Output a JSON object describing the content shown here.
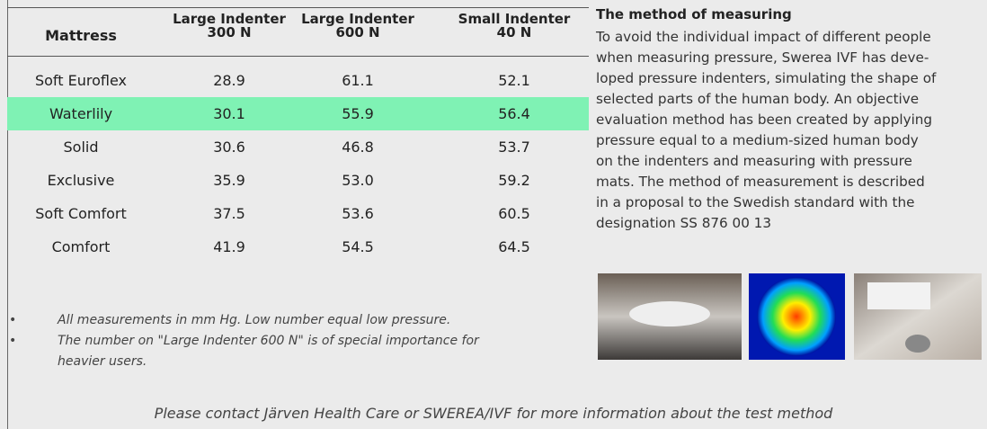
{
  "table": {
    "header": [
      [
        "Mattress"
      ],
      [
        "Large Indenter",
        "300 N"
      ],
      [
        "Large Indenter",
        "600 N"
      ],
      [
        "Small Indenter",
        "40 N"
      ]
    ],
    "rows": [
      [
        "Soft Euroflex",
        "28.9",
        "61.1",
        "52.1"
      ],
      [
        "Waterlily",
        "30.1",
        "55.9",
        "56.4"
      ],
      [
        "Solid",
        "30.6",
        "46.8",
        "53.7"
      ],
      [
        "Exclusive",
        "35.9",
        "53.0",
        "59.2"
      ],
      [
        "Soft Comfort",
        "37.5",
        "53.6",
        "60.5"
      ],
      [
        "Comfort",
        "41.9",
        "54.5",
        "64.5"
      ]
    ]
  },
  "notes": [
    "All measurements in mm Hg. Low number equal low pressure.",
    [
      "The number on \"Large Indenter 600 N\" is of special importance for",
      "heavier users."
    ]
  ],
  "method": {
    "title": "The method of measuring",
    "lines": [
      "To avoid the individual impact of different people",
      "when measuring pressure, Swerea IVF has deve-",
      "loped pressure indenters, simulating the shape of",
      "selected parts of the human body. An objective",
      "evaluation method has been created by applying",
      "pressure equal to a medium-sized human body",
      "on the indenters and measuring with pressure",
      "mats. The method of measurement is described",
      "in a proposal to the Swedish standard with the",
      "designation SS 876 00 13"
    ]
  },
  "footer": "Please contact Järven Health Care or SWEREA/IVF for more information about the test method"
}
